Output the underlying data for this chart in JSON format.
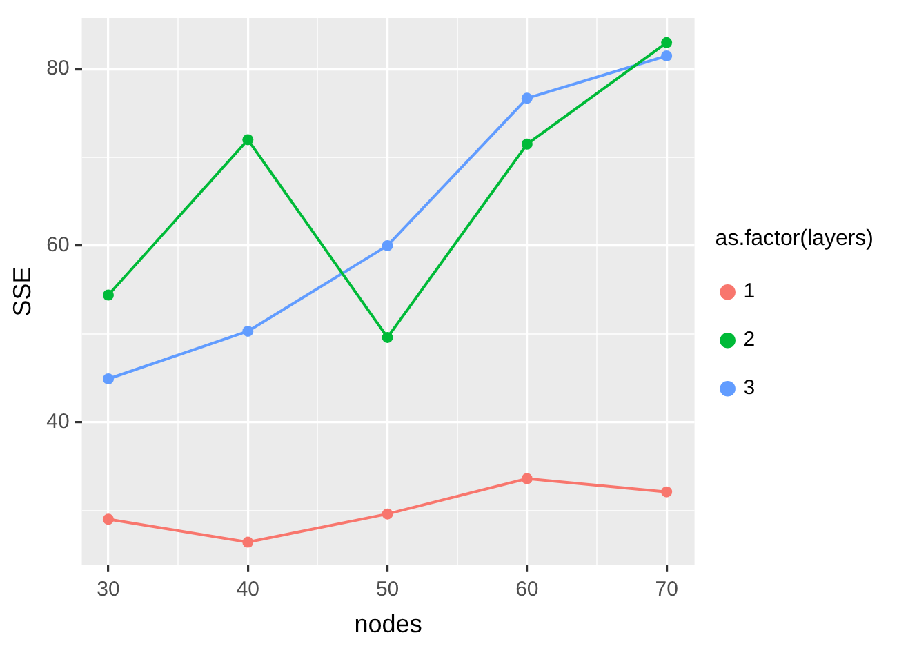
{
  "chart_data": {
    "type": "line",
    "xlabel": "nodes",
    "ylabel": "SSE",
    "legend_title": "as.factor(layers)",
    "x": [
      30,
      40,
      50,
      60,
      70
    ],
    "series": [
      {
        "name": "1",
        "color": "#f8766d",
        "values": [
          29.0,
          26.4,
          29.6,
          33.6,
          32.1
        ]
      },
      {
        "name": "2",
        "color": "#00ba38",
        "values": [
          54.4,
          72.0,
          49.6,
          71.5,
          83.0
        ]
      },
      {
        "name": "3",
        "color": "#619cff",
        "values": [
          44.9,
          50.3,
          60.0,
          76.7,
          81.5
        ]
      }
    ],
    "xlim": [
      28.1,
      72.0
    ],
    "xticks": [
      30,
      {
        "value": 35,
        "label": null
      },
      40,
      {
        "value": 45,
        "label": null
      },
      50,
      {
        "value": 55,
        "label": null
      },
      60,
      {
        "value": 65,
        "label": null
      },
      70
    ],
    "ylim": [
      23.8,
      85.8
    ],
    "yticks": [
      {
        "value": 30,
        "label": null
      },
      40,
      {
        "value": 50,
        "label": null
      },
      60,
      {
        "value": 70,
        "label": null
      },
      80
    ],
    "grid": true,
    "legend": "right",
    "marker": "circle",
    "line_style": "solid"
  }
}
